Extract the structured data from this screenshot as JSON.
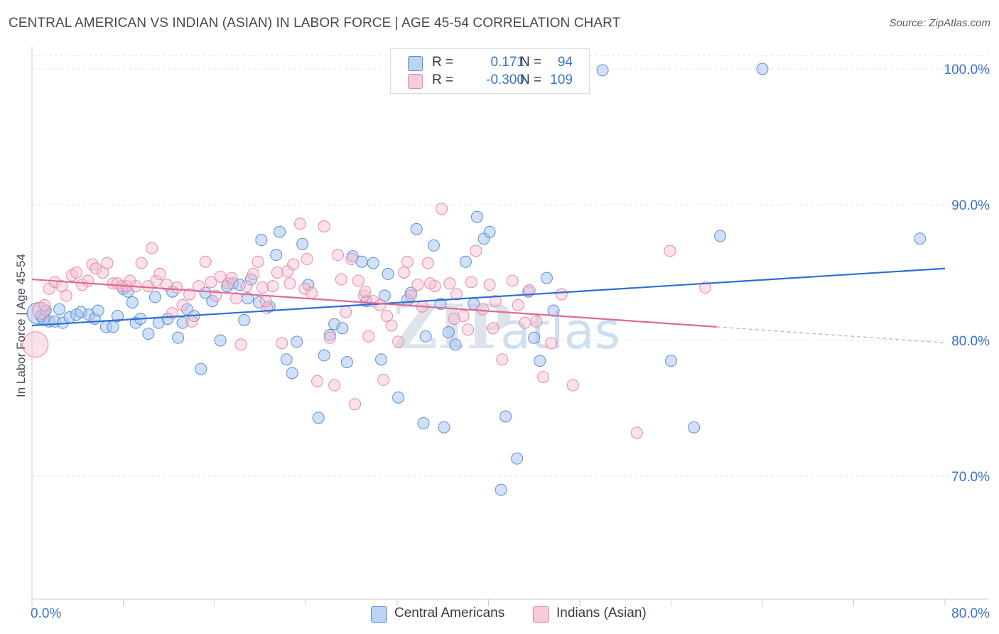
{
  "header": {
    "title": "CENTRAL AMERICAN VS INDIAN (ASIAN) IN LABOR FORCE | AGE 45-54 CORRELATION CHART",
    "source": "Source: ZipAtlas.com"
  },
  "watermark": {
    "zip": "ZIP",
    "atlas": "atlas"
  },
  "legend": {
    "rows": [
      {
        "r_label": "R =",
        "r_value": "0.171",
        "n_label": "N =",
        "n_value": "94",
        "swatch_color": "#a9c6ee",
        "border_color": "#5b8fd6"
      },
      {
        "r_label": "R =",
        "r_value": "-0.300",
        "n_label": "N =",
        "n_value": "109",
        "swatch_color": "#f7bcd0",
        "border_color": "#e58aa8"
      }
    ]
  },
  "bottom_legend": [
    {
      "label": "Central Americans",
      "color": "#a9c6ee",
      "border": "#5b8fd6"
    },
    {
      "label": "Indians (Asian)",
      "color": "#f7bcd0",
      "border": "#e58aa8"
    }
  ],
  "chart_data": {
    "type": "scatter",
    "title": "CENTRAL AMERICAN VS INDIAN (ASIAN) IN LABOR FORCE | AGE 45-54 CORRELATION CHART",
    "xlabel": "",
    "ylabel": "In Labor Force | Age 45-54",
    "xlim": [
      0,
      80
    ],
    "ylim": [
      61,
      101.5
    ],
    "x_tick_labels": [
      "0.0%",
      "80.0%"
    ],
    "y_ticks": [
      70,
      80,
      90,
      100
    ],
    "y_tick_labels": [
      "70.0%",
      "80.0%",
      "90.0%",
      "100.0%"
    ],
    "grid": "horizontal dashed",
    "legend_position": "top-center",
    "colors": {
      "Central Americans": "#3a73c9",
      "Indians (Asian)": "#e46d98"
    },
    "series": [
      {
        "name": "Central Americans",
        "trend": {
          "x": [
            0,
            80
          ],
          "y": [
            81.1,
            85.3
          ]
        },
        "points": [
          [
            0.5,
            82.0
          ],
          [
            0.8,
            81.8
          ],
          [
            1.0,
            81.6
          ],
          [
            1.2,
            82.2
          ],
          [
            1.5,
            81.4
          ],
          [
            2.0,
            81.4
          ],
          [
            2.4,
            82.3
          ],
          [
            2.7,
            81.3
          ],
          [
            3.3,
            81.7
          ],
          [
            3.9,
            81.9
          ],
          [
            4.3,
            82.1
          ],
          [
            5.0,
            81.9
          ],
          [
            5.5,
            81.6
          ],
          [
            5.8,
            82.2
          ],
          [
            6.5,
            81.0
          ],
          [
            7.1,
            81.0
          ],
          [
            7.5,
            81.8
          ],
          [
            8.0,
            83.8
          ],
          [
            8.4,
            83.6
          ],
          [
            8.8,
            82.8
          ],
          [
            9.1,
            81.3
          ],
          [
            9.5,
            81.6
          ],
          [
            10.2,
            80.5
          ],
          [
            10.8,
            83.2
          ],
          [
            11.1,
            81.3
          ],
          [
            11.9,
            81.6
          ],
          [
            12.3,
            83.6
          ],
          [
            12.8,
            80.2
          ],
          [
            13.2,
            81.3
          ],
          [
            13.6,
            82.3
          ],
          [
            14.2,
            81.8
          ],
          [
            14.8,
            77.9
          ],
          [
            15.2,
            83.5
          ],
          [
            15.8,
            82.9
          ],
          [
            16.5,
            80.0
          ],
          [
            17.1,
            84.0
          ],
          [
            17.6,
            84.2
          ],
          [
            18.2,
            84.1
          ],
          [
            18.6,
            81.5
          ],
          [
            18.9,
            83.1
          ],
          [
            19.2,
            84.5
          ],
          [
            19.9,
            82.8
          ],
          [
            20.1,
            87.4
          ],
          [
            20.8,
            82.5
          ],
          [
            21.4,
            86.3
          ],
          [
            21.7,
            88.0
          ],
          [
            22.3,
            78.6
          ],
          [
            22.8,
            77.6
          ],
          [
            23.2,
            79.9
          ],
          [
            23.7,
            87.1
          ],
          [
            24.2,
            84.1
          ],
          [
            25.1,
            74.3
          ],
          [
            25.6,
            78.9
          ],
          [
            26.1,
            80.4
          ],
          [
            26.5,
            81.2
          ],
          [
            27.2,
            80.9
          ],
          [
            27.6,
            78.4
          ],
          [
            28.1,
            86.2
          ],
          [
            28.9,
            85.8
          ],
          [
            29.3,
            82.9
          ],
          [
            29.9,
            85.7
          ],
          [
            30.6,
            78.6
          ],
          [
            30.9,
            83.3
          ],
          [
            31.2,
            84.9
          ],
          [
            32.1,
            75.8
          ],
          [
            32.9,
            83.0
          ],
          [
            33.2,
            83.5
          ],
          [
            33.7,
            88.2
          ],
          [
            34.3,
            73.9
          ],
          [
            34.5,
            80.3
          ],
          [
            35.2,
            87.0
          ],
          [
            35.8,
            82.7
          ],
          [
            36.1,
            73.6
          ],
          [
            36.5,
            80.6
          ],
          [
            37.1,
            79.7
          ],
          [
            38.0,
            85.8
          ],
          [
            38.7,
            82.7
          ],
          [
            39.0,
            89.1
          ],
          [
            39.6,
            87.5
          ],
          [
            40.1,
            88.0
          ],
          [
            41.5,
            74.4
          ],
          [
            42.5,
            71.3
          ],
          [
            43.5,
            83.6
          ],
          [
            44.0,
            80.2
          ],
          [
            44.5,
            78.5
          ],
          [
            45.1,
            84.6
          ],
          [
            45.7,
            82.2
          ],
          [
            50.0,
            99.9
          ],
          [
            56.0,
            78.5
          ],
          [
            58.0,
            73.6
          ],
          [
            60.3,
            87.7
          ],
          [
            64.0,
            100.0
          ],
          [
            77.8,
            87.5
          ],
          [
            41.1,
            69.0
          ]
        ]
      },
      {
        "name": "Indians (Asian)",
        "trend": {
          "x": [
            0,
            60
          ],
          "y": [
            84.5,
            81.0
          ]
        },
        "points": [
          [
            0.3,
            79.7
          ],
          [
            0.8,
            82.2
          ],
          [
            1.1,
            82.6
          ],
          [
            1.5,
            83.8
          ],
          [
            2.0,
            84.3
          ],
          [
            2.6,
            84.0
          ],
          [
            3.0,
            83.3
          ],
          [
            3.5,
            84.8
          ],
          [
            3.9,
            85.0
          ],
          [
            4.4,
            84.1
          ],
          [
            4.9,
            84.4
          ],
          [
            5.3,
            85.6
          ],
          [
            5.6,
            85.3
          ],
          [
            6.2,
            85.0
          ],
          [
            6.6,
            85.7
          ],
          [
            7.1,
            84.2
          ],
          [
            7.5,
            84.2
          ],
          [
            7.9,
            84.0
          ],
          [
            8.3,
            84.0
          ],
          [
            8.6,
            84.4
          ],
          [
            9.1,
            84.0
          ],
          [
            9.6,
            85.7
          ],
          [
            10.2,
            84.0
          ],
          [
            10.5,
            86.8
          ],
          [
            10.9,
            84.4
          ],
          [
            11.2,
            84.9
          ],
          [
            11.8,
            84.1
          ],
          [
            12.3,
            82.0
          ],
          [
            12.7,
            83.9
          ],
          [
            13.2,
            82.6
          ],
          [
            13.8,
            83.4
          ],
          [
            14.0,
            81.4
          ],
          [
            14.6,
            84.0
          ],
          [
            15.2,
            85.8
          ],
          [
            15.7,
            84.3
          ],
          [
            16.1,
            83.3
          ],
          [
            16.5,
            84.7
          ],
          [
            17.2,
            84.2
          ],
          [
            17.5,
            84.6
          ],
          [
            17.9,
            83.1
          ],
          [
            18.3,
            79.7
          ],
          [
            18.8,
            84.0
          ],
          [
            19.4,
            84.9
          ],
          [
            19.8,
            85.8
          ],
          [
            20.2,
            83.9
          ],
          [
            20.6,
            82.4
          ],
          [
            21.1,
            84.0
          ],
          [
            21.5,
            85.0
          ],
          [
            21.9,
            79.8
          ],
          [
            22.4,
            85.1
          ],
          [
            22.9,
            85.6
          ],
          [
            23.5,
            88.6
          ],
          [
            23.9,
            83.8
          ],
          [
            24.5,
            83.5
          ],
          [
            25.0,
            77.0
          ],
          [
            25.6,
            88.4
          ],
          [
            26.1,
            80.2
          ],
          [
            26.5,
            76.7
          ],
          [
            27.1,
            84.5
          ],
          [
            27.5,
            82.1
          ],
          [
            28.0,
            86.0
          ],
          [
            28.6,
            84.4
          ],
          [
            29.1,
            83.3
          ],
          [
            29.5,
            80.3
          ],
          [
            29.9,
            82.9
          ],
          [
            30.5,
            82.6
          ],
          [
            31.1,
            81.8
          ],
          [
            31.5,
            81.1
          ],
          [
            32.1,
            79.9
          ],
          [
            32.6,
            85.0
          ],
          [
            33.2,
            83.3
          ],
          [
            33.8,
            84.1
          ],
          [
            34.2,
            82.5
          ],
          [
            34.7,
            85.7
          ],
          [
            35.3,
            84.0
          ],
          [
            35.9,
            89.7
          ],
          [
            36.6,
            84.2
          ],
          [
            37.2,
            83.4
          ],
          [
            37.8,
            81.8
          ],
          [
            38.2,
            80.8
          ],
          [
            38.9,
            86.6
          ],
          [
            39.5,
            82.3
          ],
          [
            40.1,
            84.1
          ],
          [
            40.6,
            82.9
          ],
          [
            41.2,
            78.6
          ],
          [
            42.1,
            84.4
          ],
          [
            43.2,
            81.3
          ],
          [
            44.2,
            81.4
          ],
          [
            44.8,
            77.3
          ],
          [
            45.5,
            79.8
          ],
          [
            46.4,
            83.4
          ],
          [
            47.4,
            76.7
          ],
          [
            53.0,
            73.2
          ],
          [
            55.9,
            86.6
          ],
          [
            59.0,
            83.9
          ],
          [
            20.5,
            82.9
          ],
          [
            22.6,
            84.2
          ],
          [
            24.1,
            86.0
          ],
          [
            26.8,
            86.3
          ],
          [
            28.3,
            75.3
          ],
          [
            29.2,
            83.6
          ],
          [
            30.8,
            77.1
          ],
          [
            32.9,
            85.8
          ],
          [
            34.9,
            84.2
          ],
          [
            37.0,
            81.6
          ],
          [
            38.5,
            84.3
          ],
          [
            40.4,
            80.9
          ],
          [
            42.6,
            82.6
          ],
          [
            43.6,
            83.7
          ]
        ]
      }
    ]
  }
}
